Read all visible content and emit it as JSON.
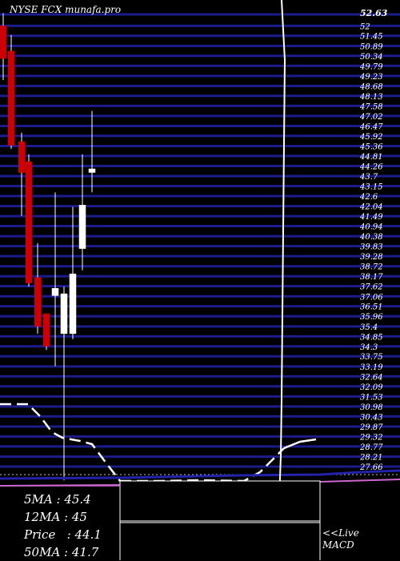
{
  "header": {
    "title": "NYSE FCX munafa.pro"
  },
  "stats": {
    "ma5": "5MA : 45.4",
    "ma12": "12MA : 45",
    "price": "Price   : 44.1",
    "ma50": "50MA : 41.7"
  },
  "macd_label": {
    "line1": "<<Live",
    "line2": "MACD"
  },
  "colors": {
    "background": "#000000",
    "grid": "#1c1c8c",
    "bear_candle": "#cc0000",
    "bull_candle": "#ffffff",
    "text": "#ffffff",
    "ma_line": "#2222aa",
    "macd_signal": "#cc66cc"
  },
  "chart_data": {
    "type": "candlestick",
    "price_axis_top_label": "52.63",
    "price_ticks": [
      "52.63",
      "52",
      "51.45",
      "50.89",
      "50.34",
      "49.79",
      "49.23",
      "48.68",
      "48.13",
      "47.58",
      "47.02",
      "46.47",
      "45.92",
      "45.36",
      "44.81",
      "44.26",
      "43.7",
      "43.15",
      "42.6",
      "42.04",
      "41.49",
      "40.94",
      "40.38",
      "39.83",
      "39.28",
      "38.72",
      "38.17",
      "37.62",
      "37.06",
      "36.51",
      "35.96",
      "35.4",
      "34.85",
      "34.3",
      "33.75",
      "33.19",
      "32.64",
      "32.09",
      "31.53",
      "30.98",
      "30.43",
      "29.87",
      "29.32",
      "28.77",
      "28.21",
      "27.66"
    ],
    "ylim": [
      27.66,
      52.63
    ],
    "candles": [
      {
        "open": 52.0,
        "high": 52.7,
        "low": 49.0,
        "close": 50.2
      },
      {
        "open": 50.6,
        "high": 51.5,
        "low": 45.2,
        "close": 45.4
      },
      {
        "open": 45.6,
        "high": 46.1,
        "low": 41.5,
        "close": 43.9
      },
      {
        "open": 44.5,
        "high": 44.9,
        "low": 37.6,
        "close": 37.8
      },
      {
        "open": 38.1,
        "high": 40.0,
        "low": 35.0,
        "close": 35.4
      },
      {
        "open": 36.1,
        "high": 36.1,
        "low": 34.1,
        "close": 34.3
      },
      {
        "open": 37.1,
        "high": 42.8,
        "low": 33.2,
        "close": 37.5
      },
      {
        "open": 35.0,
        "high": 37.6,
        "low": 26.9,
        "close": 37.2
      },
      {
        "open": 35.0,
        "high": 42.0,
        "low": 34.7,
        "close": 38.3
      },
      {
        "open": 39.7,
        "high": 44.9,
        "low": 38.5,
        "close": 42.1
      },
      {
        "open": 43.9,
        "high": 47.3,
        "low": 42.8,
        "close": 44.1
      }
    ]
  }
}
